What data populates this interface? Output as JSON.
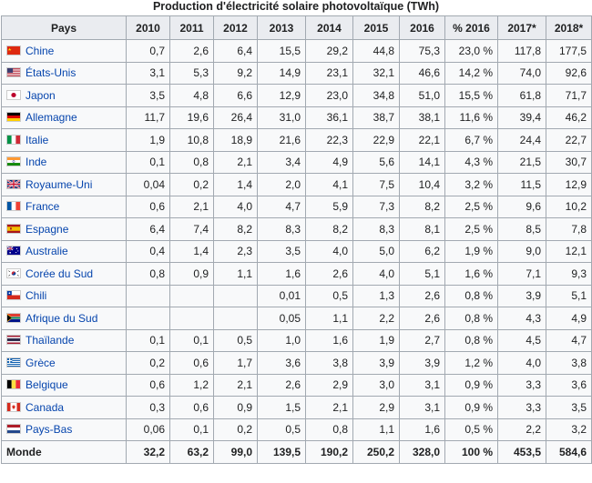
{
  "caption": "Production d'électricité solaire photovoltaïque (TWh)",
  "headers": [
    "Pays",
    "2010",
    "2011",
    "2012",
    "2013",
    "2014",
    "2015",
    "2016",
    "% 2016",
    "2017*",
    "2018*"
  ],
  "rows": [
    {
      "country": "Chine",
      "flag": "cn",
      "values": [
        "0,7",
        "2,6",
        "6,4",
        "15,5",
        "29,2",
        "44,8",
        "75,3",
        "23,0 %",
        "117,8",
        "177,5"
      ]
    },
    {
      "country": "États-Unis",
      "flag": "us",
      "values": [
        "3,1",
        "5,3",
        "9,2",
        "14,9",
        "23,1",
        "32,1",
        "46,6",
        "14,2 %",
        "74,0",
        "92,6"
      ]
    },
    {
      "country": "Japon",
      "flag": "jp",
      "values": [
        "3,5",
        "4,8",
        "6,6",
        "12,9",
        "23,0",
        "34,8",
        "51,0",
        "15,5 %",
        "61,8",
        "71,7"
      ]
    },
    {
      "country": "Allemagne",
      "flag": "de",
      "values": [
        "11,7",
        "19,6",
        "26,4",
        "31,0",
        "36,1",
        "38,7",
        "38,1",
        "11,6 %",
        "39,4",
        "46,2"
      ]
    },
    {
      "country": "Italie",
      "flag": "it",
      "values": [
        "1,9",
        "10,8",
        "18,9",
        "21,6",
        "22,3",
        "22,9",
        "22,1",
        "6,7 %",
        "24,4",
        "22,7"
      ]
    },
    {
      "country": "Inde",
      "flag": "in",
      "values": [
        "0,1",
        "0,8",
        "2,1",
        "3,4",
        "4,9",
        "5,6",
        "14,1",
        "4,3 %",
        "21,5",
        "30,7"
      ]
    },
    {
      "country": "Royaume-Uni",
      "flag": "gb",
      "values": [
        "0,04",
        "0,2",
        "1,4",
        "2,0",
        "4,1",
        "7,5",
        "10,4",
        "3,2 %",
        "11,5",
        "12,9"
      ]
    },
    {
      "country": "France",
      "flag": "fr",
      "values": [
        "0,6",
        "2,1",
        "4,0",
        "4,7",
        "5,9",
        "7,3",
        "8,2",
        "2,5 %",
        "9,6",
        "10,2"
      ]
    },
    {
      "country": "Espagne",
      "flag": "es",
      "values": [
        "6,4",
        "7,4",
        "8,2",
        "8,3",
        "8,2",
        "8,3",
        "8,1",
        "2,5 %",
        "8,5",
        "7,8"
      ]
    },
    {
      "country": "Australie",
      "flag": "au",
      "values": [
        "0,4",
        "1,4",
        "2,3",
        "3,5",
        "4,0",
        "5,0",
        "6,2",
        "1,9 %",
        "9,0",
        "12,1"
      ]
    },
    {
      "country": "Corée du Sud",
      "flag": "kr",
      "values": [
        "0,8",
        "0,9",
        "1,1",
        "1,6",
        "2,6",
        "4,0",
        "5,1",
        "1,6 %",
        "7,1",
        "9,3"
      ]
    },
    {
      "country": "Chili",
      "flag": "cl",
      "values": [
        "",
        "",
        "",
        "0,01",
        "0,5",
        "1,3",
        "2,6",
        "0,8 %",
        "3,9",
        "5,1"
      ]
    },
    {
      "country": "Afrique du Sud",
      "flag": "za",
      "values": [
        "",
        "",
        "",
        "0,05",
        "1,1",
        "2,2",
        "2,6",
        "0,8 %",
        "4,3",
        "4,9"
      ]
    },
    {
      "country": "Thaïlande",
      "flag": "th",
      "values": [
        "0,1",
        "0,1",
        "0,5",
        "1,0",
        "1,6",
        "1,9",
        "2,7",
        "0,8 %",
        "4,5",
        "4,7"
      ]
    },
    {
      "country": "Grèce",
      "flag": "gr",
      "values": [
        "0,2",
        "0,6",
        "1,7",
        "3,6",
        "3,8",
        "3,9",
        "3,9",
        "1,2 %",
        "4,0",
        "3,8"
      ]
    },
    {
      "country": "Belgique",
      "flag": "be",
      "values": [
        "0,6",
        "1,2",
        "2,1",
        "2,6",
        "2,9",
        "3,0",
        "3,1",
        "0,9 %",
        "3,3",
        "3,6"
      ]
    },
    {
      "country": "Canada",
      "flag": "ca",
      "values": [
        "0,3",
        "0,6",
        "0,9",
        "1,5",
        "2,1",
        "2,9",
        "3,1",
        "0,9 %",
        "3,3",
        "3,5"
      ]
    },
    {
      "country": "Pays-Bas",
      "flag": "nl",
      "values": [
        "0,06",
        "0,1",
        "0,2",
        "0,5",
        "0,8",
        "1,1",
        "1,6",
        "0,5 %",
        "2,2",
        "3,2"
      ]
    }
  ],
  "total": {
    "label": "Monde",
    "values": [
      "32,2",
      "63,2",
      "99,0",
      "139,5",
      "190,2",
      "250,2",
      "328,0",
      "100 %",
      "453,5",
      "584,6"
    ]
  }
}
